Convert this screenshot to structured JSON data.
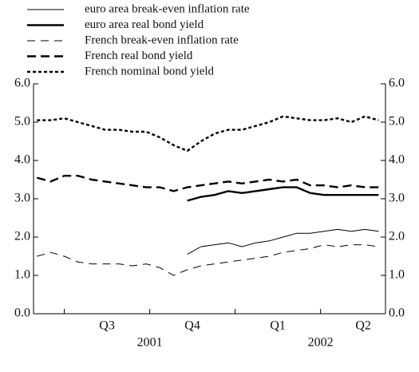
{
  "chart_data": {
    "type": "line",
    "x": [
      2001.42,
      2001.46,
      2001.5,
      2001.54,
      2001.58,
      2001.62,
      2001.66,
      2001.7,
      2001.74,
      2001.78,
      2001.82,
      2001.86,
      2001.9,
      2001.94,
      2001.98,
      2002.02,
      2002.06,
      2002.1,
      2002.14,
      2002.18,
      2002.22,
      2002.26,
      2002.3,
      2002.34,
      2002.38,
      2002.42
    ],
    "series": [
      {
        "name": "euro area break-even inflation rate",
        "color": "#000000",
        "line_style": "solid",
        "weight": "thin",
        "values": [
          null,
          null,
          null,
          null,
          null,
          null,
          null,
          null,
          null,
          null,
          null,
          1.55,
          1.75,
          1.8,
          1.85,
          1.75,
          1.85,
          1.9,
          2.0,
          2.1,
          2.1,
          2.15,
          2.2,
          2.15,
          2.2,
          2.15
        ]
      },
      {
        "name": "euro area real bond yield",
        "color": "#000000",
        "line_style": "solid",
        "weight": "thick",
        "values": [
          null,
          null,
          null,
          null,
          null,
          null,
          null,
          null,
          null,
          null,
          null,
          2.95,
          3.05,
          3.1,
          3.2,
          3.15,
          3.2,
          3.25,
          3.3,
          3.3,
          3.15,
          3.1,
          3.1,
          3.1,
          3.1,
          3.1
        ]
      },
      {
        "name": "French break-even inflation rate",
        "color": "#000000",
        "line_style": "dashed",
        "weight": "thin",
        "values": [
          1.5,
          1.6,
          1.5,
          1.35,
          1.3,
          1.3,
          1.3,
          1.25,
          1.3,
          1.2,
          1.0,
          1.15,
          1.25,
          1.3,
          1.35,
          1.4,
          1.45,
          1.5,
          1.6,
          1.65,
          1.7,
          1.8,
          1.75,
          1.8,
          1.8,
          1.75
        ]
      },
      {
        "name": "French real bond yield",
        "color": "#000000",
        "line_style": "dashed",
        "weight": "thick",
        "values": [
          3.55,
          3.45,
          3.6,
          3.6,
          3.5,
          3.45,
          3.4,
          3.35,
          3.3,
          3.3,
          3.2,
          3.3,
          3.35,
          3.4,
          3.45,
          3.4,
          3.45,
          3.5,
          3.45,
          3.5,
          3.35,
          3.35,
          3.3,
          3.35,
          3.3,
          3.3
        ]
      },
      {
        "name": "French nominal bond yield",
        "color": "#000000",
        "line_style": "dotted",
        "weight": "thick",
        "values": [
          5.05,
          5.05,
          5.1,
          5.0,
          4.9,
          4.8,
          4.8,
          4.75,
          4.75,
          4.6,
          4.4,
          4.25,
          4.5,
          4.7,
          4.8,
          4.8,
          4.9,
          5.0,
          5.15,
          5.1,
          5.05,
          5.05,
          5.1,
          5.0,
          5.15,
          5.05
        ]
      }
    ],
    "xlim": [
      2001.41,
      2002.44
    ],
    "xticks": [
      2001.5,
      2001.75,
      2002.0,
      2002.25
    ],
    "quarter_labels": [
      {
        "value": 2001.625,
        "label": "Q3"
      },
      {
        "value": 2001.875,
        "label": "Q4"
      },
      {
        "value": 2002.125,
        "label": "Q1"
      },
      {
        "value": 2002.375,
        "label": "Q2"
      }
    ],
    "year_labels": [
      {
        "value": 2001.75,
        "label": "2001"
      },
      {
        "value": 2002.25,
        "label": "2002"
      }
    ],
    "ylim": [
      0,
      6
    ],
    "yticks": [
      {
        "value": 0,
        "label": "0.0"
      },
      {
        "value": 1,
        "label": "1.0"
      },
      {
        "value": 2,
        "label": "2.0"
      },
      {
        "value": 3,
        "label": "3.0"
      },
      {
        "value": 4,
        "label": "4.0"
      },
      {
        "value": 5,
        "label": "5.0"
      },
      {
        "value": 6,
        "label": "6.0"
      }
    ],
    "y2lim": [
      0,
      6
    ],
    "y2ticks": [
      {
        "value": 0,
        "label": "0.0"
      },
      {
        "value": 1,
        "label": "1.0"
      },
      {
        "value": 2,
        "label": "2.0"
      },
      {
        "value": 3,
        "label": "3.0"
      },
      {
        "value": 4,
        "label": "4.0"
      },
      {
        "value": 5,
        "label": "5.0"
      },
      {
        "value": 6,
        "label": "6.0"
      }
    ],
    "legend": "top-left"
  }
}
